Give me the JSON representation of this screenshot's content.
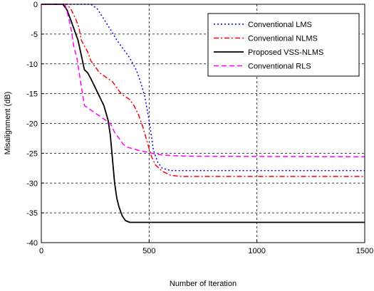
{
  "chart_data": {
    "type": "line",
    "title": "",
    "xlabel": "Number of Iteration",
    "ylabel": "Misalignment (dB)",
    "xlim": [
      0,
      1500
    ],
    "ylim": [
      -40,
      0
    ],
    "xticks": [
      0,
      500,
      1000,
      1500
    ],
    "yticks": [
      -40,
      -35,
      -30,
      -25,
      -20,
      -15,
      -10,
      -5,
      0
    ],
    "grid": true,
    "legend_position": "top-right",
    "series": [
      {
        "name": "Conventional LMS",
        "color": "#0000ff",
        "style": "dotted",
        "x": [
          0,
          230,
          260,
          290,
          320,
          350,
          380,
          410,
          440,
          460,
          480,
          500,
          510,
          520,
          540,
          560,
          600,
          700,
          1500
        ],
        "y": [
          0,
          0,
          -0.8,
          -2.5,
          -4.2,
          -6.0,
          -7.5,
          -9.0,
          -11.0,
          -13.0,
          -15.5,
          -19.5,
          -22.0,
          -24.5,
          -26.5,
          -27.5,
          -27.9,
          -27.9,
          -27.9
        ]
      },
      {
        "name": "Conventional NLMS",
        "color": "#ff0000",
        "style": "dashdot",
        "x": [
          0,
          120,
          140,
          160,
          175,
          185,
          200,
          215,
          230,
          250,
          270,
          290,
          310,
          330,
          350,
          370,
          390,
          410,
          430,
          450,
          470,
          490,
          510,
          530,
          560,
          600,
          650,
          700,
          1500
        ],
        "y": [
          0,
          0,
          -1.0,
          -2.5,
          -4.0,
          -6.0,
          -7.0,
          -8.0,
          -9.5,
          -10.5,
          -11.5,
          -12.0,
          -12.5,
          -13.0,
          -14.0,
          -15.0,
          -15.5,
          -16.0,
          -17.0,
          -18.5,
          -20.5,
          -23.0,
          -25.5,
          -27.0,
          -28.0,
          -28.7,
          -28.9,
          -28.9,
          -28.9
        ]
      },
      {
        "name": "Proposed VSS-NLMS",
        "color": "#000000",
        "style": "solid",
        "x": [
          0,
          100,
          120,
          140,
          155,
          170,
          185,
          200,
          215,
          230,
          250,
          270,
          290,
          310,
          320,
          330,
          340,
          350,
          360,
          375,
          390,
          410,
          450,
          500,
          1500
        ],
        "y": [
          0,
          0,
          -1.0,
          -3.0,
          -4.5,
          -6.0,
          -8.5,
          -11.0,
          -11.5,
          -12.5,
          -14.0,
          -15.5,
          -17.0,
          -19.5,
          -22.0,
          -26.0,
          -30.0,
          -32.5,
          -34.0,
          -35.5,
          -36.3,
          -36.6,
          -36.6,
          -36.6,
          -36.6
        ]
      },
      {
        "name": "Conventional RLS",
        "color": "#ff00ff",
        "style": "dashed",
        "x": [
          0,
          110,
          125,
          140,
          150,
          165,
          180,
          200,
          220,
          240,
          260,
          280,
          300,
          320,
          340,
          360,
          380,
          400,
          430,
          460,
          500,
          540,
          600,
          700,
          1500
        ],
        "y": [
          0,
          0,
          -2.0,
          -4.5,
          -7.0,
          -9.0,
          -12.5,
          -17.0,
          -17.5,
          -18.0,
          -18.5,
          -19.0,
          -19.5,
          -20.0,
          -21.5,
          -22.5,
          -23.5,
          -24.0,
          -24.3,
          -24.6,
          -24.9,
          -25.2,
          -25.4,
          -25.5,
          -25.6
        ]
      }
    ]
  }
}
